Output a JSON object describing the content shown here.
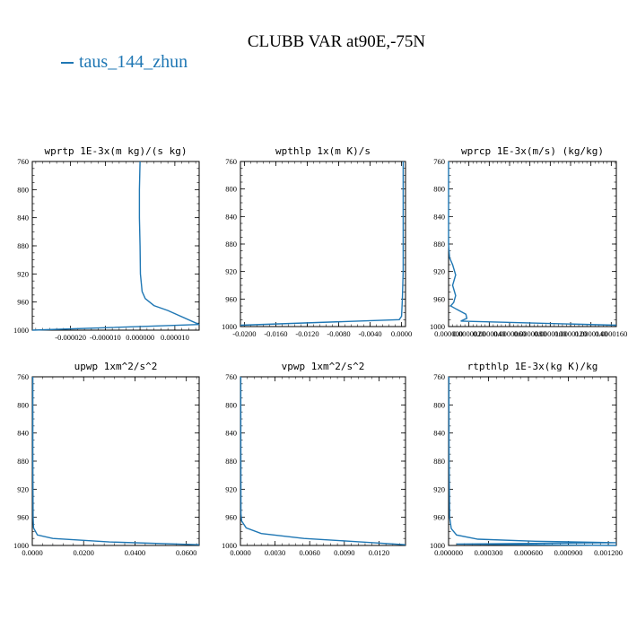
{
  "figure": {
    "title": "CLUBB VAR at90E,-75N",
    "legend_label": "taus_144_zhun",
    "line_color": "#1f77b4"
  },
  "chart_data": [
    {
      "type": "line",
      "title": "wprtp  1E-3x(m kg)/(s kg)",
      "xlim": [
        -3.1e-05,
        1.7e-05
      ],
      "ylim": [
        760,
        1000
      ],
      "y_inverted": true,
      "xticks": [
        -2e-05,
        -1e-05,
        0.0,
        1e-05
      ],
      "xtick_labels": [
        "-0.000020",
        "-0.000010",
        "0.000000",
        "0.000010"
      ],
      "yticks": [
        760,
        800,
        840,
        880,
        920,
        960,
        1000
      ],
      "series": [
        {
          "x": [
            -0.0,
            -2e-07,
            -2e-07,
            0.0,
            1e-07,
            6e-07,
            1.5e-06,
            4e-06,
            8e-06,
            1.7e-05,
            5e-06,
            -3.1e-05
          ],
          "y": [
            760,
            800,
            840,
            880,
            920,
            945,
            955,
            965,
            972,
            992,
            994,
            1000
          ]
        }
      ]
    },
    {
      "type": "line",
      "title": "wpthlp  1x(m K)/s",
      "xlim": [
        -0.0205,
        0.0005
      ],
      "ylim": [
        760,
        1000
      ],
      "y_inverted": true,
      "xticks": [
        -0.02,
        -0.016,
        -0.012,
        -0.008,
        -0.004,
        0.0
      ],
      "xtick_labels": [
        "-0.0200",
        "-0.0160",
        "-0.0120",
        "-0.0080",
        "-0.0040",
        "0.0000"
      ],
      "yticks": [
        760,
        800,
        840,
        880,
        920,
        960,
        1000
      ],
      "series": [
        {
          "x": [
            0.0002,
            0.0002,
            0.0002,
            0.0002,
            0.0002,
            0.0001,
            0.0,
            -0.0003,
            -0.0205
          ],
          "y": [
            760,
            800,
            840,
            880,
            920,
            960,
            985,
            990,
            998
          ]
        }
      ]
    },
    {
      "type": "line",
      "title": "wprcp  1E-3x(m/s) (kg/kg)",
      "xlim": [
        0.0,
        1.65e-05
      ],
      "ylim": [
        760,
        1000
      ],
      "y_inverted": true,
      "xticks": [
        0.0,
        2e-06,
        4e-06,
        6e-06,
        8e-06,
        1e-05,
        1.2e-05,
        1.4e-05,
        1.6e-05
      ],
      "xtick_labels": [
        "0.000000",
        "0.0000020",
        "0.0000040",
        "0.0000060",
        "0.0000080",
        "0.0000100",
        "0.0000120",
        "0.0000140",
        "0.0000160"
      ],
      "yticks": [
        760,
        800,
        840,
        880,
        920,
        960,
        1000
      ],
      "series": [
        {
          "x": [
            0.0,
            0.0,
            0.0,
            0.0,
            1e-07,
            4e-07,
            7e-07,
            4e-07,
            7e-07,
            5e-07,
            2e-07,
            8e-07,
            1.7e-06,
            1.8e-06,
            1.2e-06,
            1.65e-05
          ],
          "y": [
            760,
            800,
            850,
            880,
            900,
            910,
            925,
            940,
            955,
            965,
            970,
            975,
            982,
            988,
            992,
            998
          ]
        }
      ]
    },
    {
      "type": "line",
      "title": "upwp  1xm^2/s^2",
      "xlim": [
        0.0,
        0.065
      ],
      "ylim": [
        760,
        1000
      ],
      "y_inverted": true,
      "xticks": [
        0.0,
        0.02,
        0.04,
        0.06
      ],
      "xtick_labels": [
        "0.0000",
        "0.0200",
        "0.0400",
        "0.0600"
      ],
      "yticks": [
        760,
        800,
        840,
        880,
        920,
        960,
        1000
      ],
      "series": [
        {
          "x": [
            0.0002,
            0.0002,
            0.0002,
            0.0003,
            0.0005,
            0.002,
            0.008,
            0.03,
            0.065
          ],
          "y": [
            760,
            800,
            880,
            960,
            975,
            985,
            990,
            995,
            999
          ]
        }
      ]
    },
    {
      "type": "line",
      "title": "vpwp  1xm^2/s^2",
      "xlim": [
        0.0,
        0.0143
      ],
      "ylim": [
        760,
        1000
      ],
      "y_inverted": true,
      "xticks": [
        0.0,
        0.003,
        0.006,
        0.009,
        0.012
      ],
      "xtick_labels": [
        "0.0000",
        "0.0030",
        "0.0060",
        "0.0090",
        "0.0120"
      ],
      "yticks": [
        760,
        800,
        840,
        880,
        920,
        960,
        1000
      ],
      "series": [
        {
          "x": [
            3e-05,
            3e-05,
            4e-05,
            5e-05,
            0.0001,
            0.0005,
            0.0018,
            0.0055,
            0.0095,
            0.0143
          ],
          "y": [
            760,
            800,
            880,
            955,
            965,
            975,
            983,
            990,
            994,
            999
          ]
        }
      ]
    },
    {
      "type": "line",
      "title": "rtpthlp  1E-3x(kg K)/kg",
      "xlim": [
        0.0,
        0.00126
      ],
      "ylim": [
        760,
        1000
      ],
      "y_inverted": true,
      "xticks": [
        0.0,
        0.0003,
        0.0006,
        0.0009,
        0.0012
      ],
      "xtick_labels": [
        "0.000000",
        "0.000300",
        "0.000600",
        "0.000900",
        "0.001200"
      ],
      "yticks": [
        760,
        800,
        840,
        880,
        920,
        960,
        1000
      ],
      "series": [
        {
          "x": [
            3e-06,
            3e-06,
            4e-06,
            8e-06,
            2e-05,
            6e-05,
            0.00022,
            0.00065,
            0.00126,
            6e-05,
            0.00126
          ],
          "y": [
            760,
            800,
            880,
            960,
            976,
            985,
            991,
            994,
            996,
            998,
            1000
          ]
        }
      ]
    }
  ]
}
